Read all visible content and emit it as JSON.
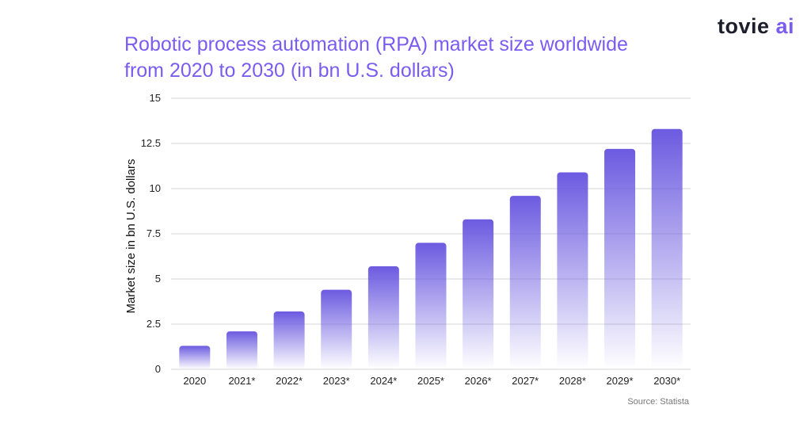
{
  "header": {
    "title_line1": "Robotic process automation (RPA) market size worldwide",
    "title_line2": "from 2020 to 2030 (in bn U.S. dollars)"
  },
  "logo": {
    "word1": "tovie",
    "word2": "ai"
  },
  "source": "Source: Statista",
  "colors": {
    "bar_top": "#6c5be0",
    "gridline": "#d6d6d6",
    "title": "#7b5cf0"
  },
  "chart_data": {
    "type": "bar",
    "title": "Robotic process automation (RPA) market size worldwide from 2020 to 2030 (in bn U.S. dollars)",
    "xlabel": "",
    "ylabel": "Market size in bn U.S. dollars",
    "categories": [
      "2020",
      "2021*",
      "2022*",
      "2023*",
      "2024*",
      "2025*",
      "2026*",
      "2027*",
      "2028*",
      "2029*",
      "2030*"
    ],
    "values": [
      1.3,
      2.1,
      3.2,
      4.4,
      5.7,
      7.0,
      8.3,
      9.6,
      10.9,
      12.2,
      13.3
    ],
    "ylim": [
      0,
      15
    ],
    "yticks": [
      0,
      2.5,
      5,
      7.5,
      10,
      12.5,
      15
    ],
    "ytick_labels": [
      "0",
      "2.5",
      "5",
      "7.5",
      "10",
      "12.5",
      "15"
    ],
    "grid": true,
    "legend": "none"
  }
}
